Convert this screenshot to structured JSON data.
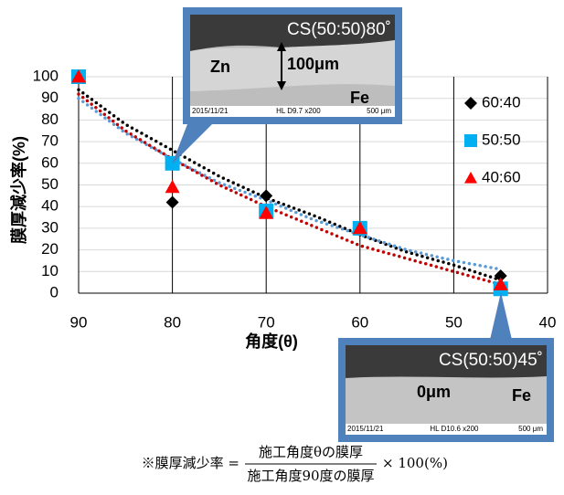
{
  "chart_data": {
    "type": "scatter",
    "x": [
      90,
      80,
      70,
      60,
      45
    ],
    "xlim": [
      90,
      40
    ],
    "xticks": [
      90,
      80,
      70,
      60,
      50,
      40
    ],
    "ylim": [
      0,
      100
    ],
    "yticks": [
      0,
      10,
      20,
      30,
      40,
      50,
      60,
      70,
      80,
      90,
      100
    ],
    "xlabel": "角度(θ)",
    "ylabel": "膜厚減少率(%)",
    "grid": true,
    "legend": "right",
    "series": [
      {
        "name": "60:40",
        "color": "#000000",
        "marker": "diamond",
        "values": [
          100,
          42,
          45,
          30,
          8
        ],
        "trendline": {
          "color": "#000000",
          "x": [
            90,
            85,
            80,
            75,
            70,
            65,
            60,
            55,
            50,
            45
          ],
          "values": [
            94,
            78,
            66,
            54,
            44,
            36,
            27,
            19,
            13,
            6
          ]
        }
      },
      {
        "name": "50:50",
        "color": "#00b0f0",
        "marker": "square",
        "values": [
          100,
          60,
          38,
          30,
          2
        ],
        "trendline": {
          "color": "#5b9bd5",
          "x": [
            90,
            85,
            80,
            75,
            70,
            65,
            60,
            55,
            50,
            45
          ],
          "values": [
            90,
            74,
            62,
            51,
            43,
            34,
            27,
            20,
            15,
            11
          ]
        }
      },
      {
        "name": "40:60",
        "color": "#ff0000",
        "marker": "triangle",
        "values": [
          100,
          49,
          37,
          30,
          4
        ],
        "trendline": {
          "color": "#c00000",
          "x": [
            90,
            85,
            80,
            75,
            70,
            65,
            60,
            55,
            50,
            45
          ],
          "values": [
            92,
            75,
            62,
            50,
            40,
            31,
            22,
            16,
            10,
            4
          ]
        }
      }
    ]
  },
  "insets": [
    {
      "title": "CS(50:50)80˚",
      "labels": [
        "Zn",
        "100μm",
        "Fe"
      ],
      "footer": [
        "2015/11/21",
        "HL  D9.7  x200",
        "500 μm"
      ]
    },
    {
      "title": "CS(50:50)45˚",
      "labels": [
        "0μm",
        "Fe"
      ],
      "footer": [
        "2015/11/21",
        "HL  D10.6 x200",
        "500 μm"
      ]
    }
  ],
  "formula": {
    "lhs": "※膜厚減少率 =",
    "numerator": "施工角度θの膜厚",
    "denominator": "施工角度90度の膜厚",
    "rhs": "× 100(%)"
  }
}
